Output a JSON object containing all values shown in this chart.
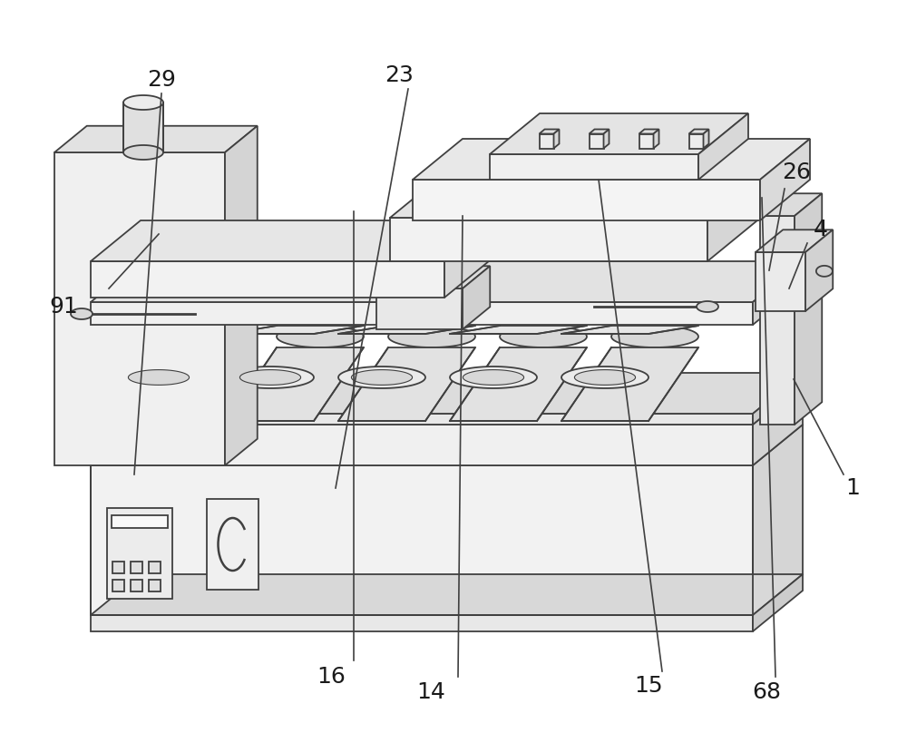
{
  "bg_color": "#ffffff",
  "line_color": "#404040",
  "lw": 1.3,
  "figsize": [
    10.0,
    8.08
  ],
  "dpi": 100,
  "label_fontsize": 18,
  "labels": [
    [
      "91",
      70,
      470
    ],
    [
      "16",
      365,
      62
    ],
    [
      "14",
      475,
      45
    ],
    [
      "15",
      715,
      52
    ],
    [
      "68",
      845,
      45
    ],
    [
      "1",
      940,
      270
    ],
    [
      "4",
      905,
      555
    ],
    [
      "26",
      878,
      618
    ],
    [
      "29",
      178,
      720
    ],
    [
      "23",
      440,
      725
    ]
  ],
  "ann_lines": [
    [
      "91",
      70,
      470,
      120,
      490,
      175,
      550
    ],
    [
      "16",
      365,
      62,
      390,
      80,
      390,
      575
    ],
    [
      "14",
      475,
      45,
      505,
      62,
      510,
      570
    ],
    [
      "15",
      715,
      52,
      730,
      68,
      660,
      610
    ],
    [
      "68",
      845,
      45,
      855,
      62,
      840,
      590
    ],
    [
      "1",
      940,
      270,
      930,
      285,
      875,
      390
    ],
    [
      "4",
      905,
      555,
      890,
      540,
      870,
      490
    ],
    [
      "26",
      878,
      618,
      865,
      600,
      848,
      510
    ],
    [
      "29",
      178,
      720,
      178,
      705,
      148,
      285
    ],
    [
      "23",
      440,
      725,
      450,
      710,
      370,
      270
    ]
  ]
}
